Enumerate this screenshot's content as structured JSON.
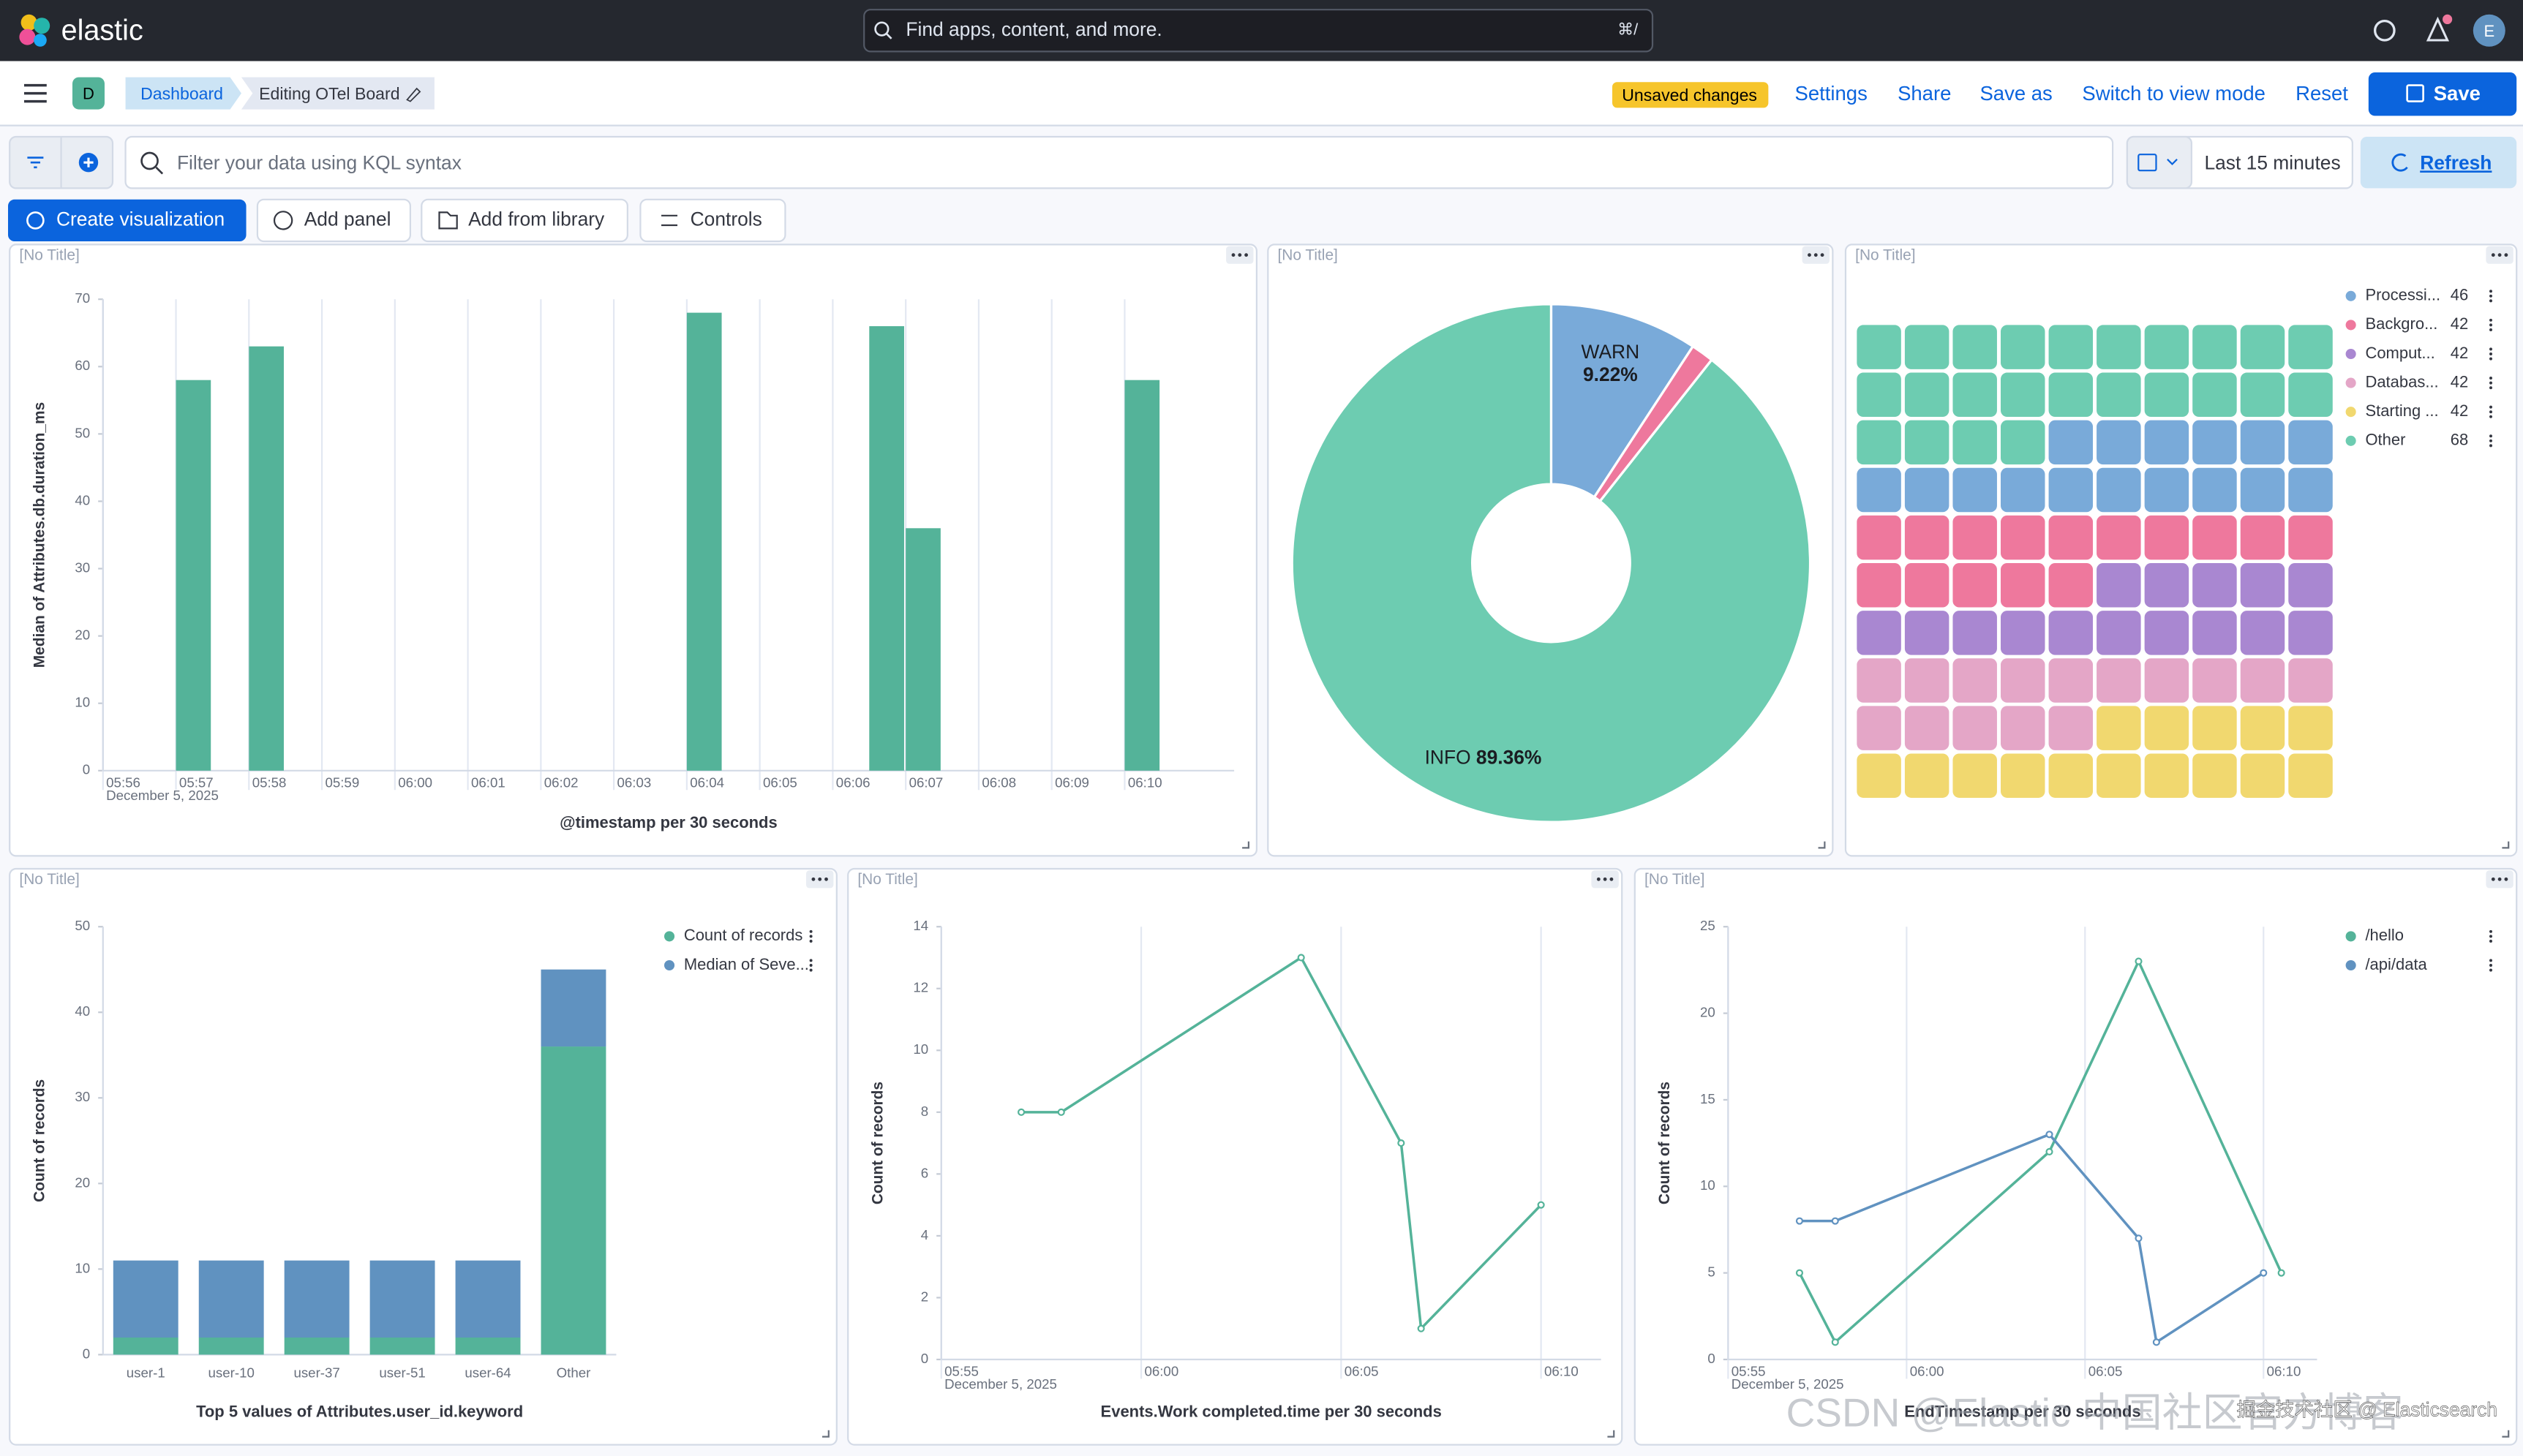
{
  "header": {
    "brand": "elastic",
    "search": "Find apps, content, and more.",
    "shortcut": "⌘/",
    "avatar": "E"
  },
  "nav": {
    "space": "D",
    "breadcrumbs": [
      "Dashboard",
      "Editing OTel Board"
    ],
    "status": "Unsaved changes",
    "actions": [
      "Settings",
      "Share",
      "Save as",
      "Switch to view mode",
      "Reset"
    ],
    "save": "Save"
  },
  "query": {
    "placeholder": "Filter your data using KQL syntax",
    "time_range": "Last 15 minutes",
    "refresh": "Refresh"
  },
  "toolbar": [
    "Create visualization",
    "Add panel",
    "Add from library",
    "Controls"
  ],
  "watermark": [
    "CSDN @Elastic 中国社区官方博客",
    "掘金技术社区 @ Elasticsearch"
  ],
  "chart_data": [
    {
      "panel_title": "[No Title]",
      "type": "bar",
      "x": [
        "05:57",
        "05:58",
        "06:04",
        "06:06:30",
        "06:07",
        "06:10"
      ],
      "values": [
        58,
        63,
        68,
        66,
        36,
        58
      ],
      "color": "#54b399",
      "xlim": [
        "05:56",
        "06:11:30"
      ],
      "xticks": [
        "05:56",
        "05:57",
        "05:58",
        "05:59",
        "06:00",
        "06:01",
        "06:02",
        "06:03",
        "06:04",
        "06:05",
        "06:06",
        "06:07",
        "06:08",
        "06:09",
        "06:10"
      ],
      "x_sublabel": "December 5, 2025",
      "ylim": [
        0,
        70
      ],
      "yticks": [
        0,
        10,
        20,
        30,
        40,
        50,
        60,
        70
      ],
      "grid": true,
      "ylabel": "Median of Attributes.db.duration_ms",
      "xlabel": "@timestamp per 30 seconds"
    },
    {
      "panel_title": "[No Title]",
      "type": "pie",
      "categories": [
        "WARN",
        null,
        "INFO"
      ],
      "values": [
        9.22,
        1.42,
        89.36
      ],
      "value_labels": [
        "9.22%",
        null,
        "89.36%"
      ],
      "colors": [
        "#79aad9",
        "#ee789d",
        "#6dccb1"
      ],
      "donut": true
    },
    {
      "panel_title": "[No Title]",
      "type": "waffle",
      "categories": [
        "Processi...",
        "Backgro...",
        "Comput...",
        "Databas...",
        "Starting ...",
        "Other"
      ],
      "values": [
        46,
        42,
        42,
        42,
        42,
        68
      ],
      "colors": [
        "#79aad9",
        "#ee789d",
        "#a987d1",
        "#e4a6c7",
        "#f1d86f",
        "#6dccb1"
      ],
      "legend": "top-right"
    },
    {
      "panel_title": "[No Title]",
      "type": "stacked-bar",
      "categories": [
        "user-1",
        "user-10",
        "user-37",
        "user-51",
        "user-64",
        "Other"
      ],
      "series": [
        {
          "name": "Count of records",
          "color": "#54b399",
          "values": [
            2,
            2,
            2,
            2,
            2,
            36
          ]
        },
        {
          "name": "Median of Seve...",
          "color": "#6092c0",
          "values": [
            9,
            9,
            9,
            9,
            9,
            9
          ]
        }
      ],
      "ylim": [
        0,
        50
      ],
      "yticks": [
        0,
        10,
        20,
        30,
        40,
        50
      ],
      "legend": "top-right",
      "ylabel": "Count of records",
      "xlabel": "Top 5 values of Attributes.user_id.keyword"
    },
    {
      "panel_title": "[No Title]",
      "type": "line",
      "x": [
        "05:57",
        "05:58",
        "06:04",
        "06:06:30",
        "06:07",
        "06:10"
      ],
      "series": [
        {
          "color": "#54b399",
          "values": [
            8,
            8,
            13,
            7,
            1,
            5
          ]
        }
      ],
      "xlim": [
        "05:55",
        "06:11:30"
      ],
      "xticks": [
        "05:55",
        "06:00",
        "06:05",
        "06:10"
      ],
      "x_sublabel": "December 5, 2025",
      "ylim": [
        0,
        14
      ],
      "yticks": [
        0,
        2,
        4,
        6,
        8,
        10,
        12,
        14
      ],
      "grid": true,
      "ylabel": "Count of records",
      "xlabel": "Events.Work completed.time per 30 seconds"
    },
    {
      "panel_title": "[No Title]",
      "type": "line",
      "series": [
        {
          "name": "/hello",
          "color": "#54b399",
          "x": [
            "05:57",
            "05:58",
            "06:04",
            "06:06:30",
            "06:10:30"
          ],
          "values": [
            5,
            1,
            12,
            23,
            5
          ]
        },
        {
          "name": "/api/data",
          "color": "#6092c0",
          "x": [
            "05:57",
            "05:58",
            "06:04",
            "06:06:30",
            "06:07",
            "06:10"
          ],
          "values": [
            8,
            8,
            13,
            7,
            1,
            5
          ]
        }
      ],
      "xlim": [
        "05:55",
        "06:11:30"
      ],
      "xticks": [
        "05:55",
        "06:00",
        "06:05",
        "06:10"
      ],
      "x_sublabel": "December 5, 2025",
      "ylim": [
        0,
        25
      ],
      "yticks": [
        0,
        5,
        10,
        15,
        20,
        25
      ],
      "grid": true,
      "legend": "top-right",
      "ylabel": "Count of records",
      "xlabel": "EndTimestamp per 30 seconds"
    }
  ]
}
